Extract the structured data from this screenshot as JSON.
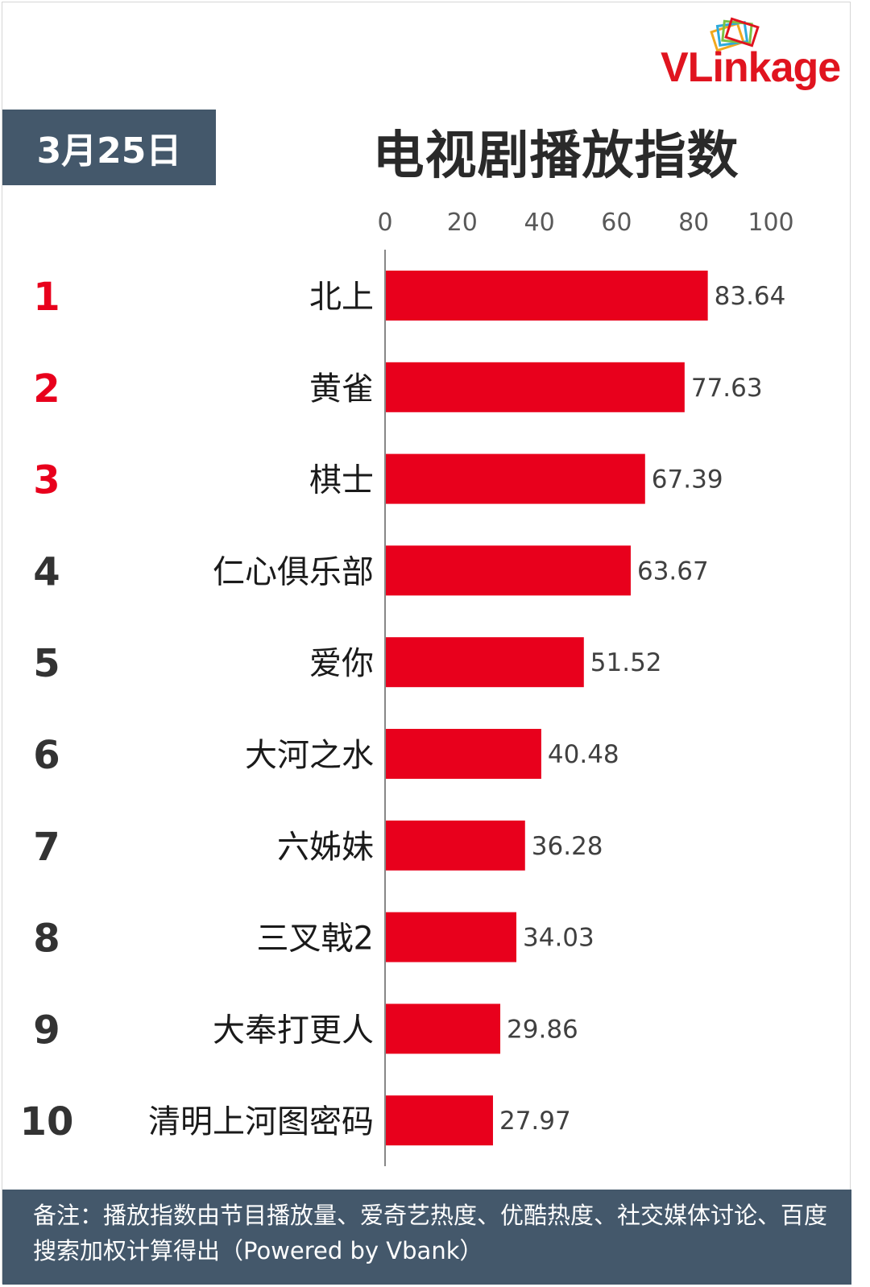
{
  "brand": {
    "name": "VLinkage"
  },
  "header": {
    "date": "3月25日",
    "title": "电视剧播放指数"
  },
  "chart_data": {
    "type": "bar",
    "orientation": "horizontal",
    "title": "电视剧播放指数",
    "xlim": [
      0,
      100
    ],
    "xticks": [
      "0",
      "20",
      "40",
      "60",
      "80",
      "100"
    ],
    "grid": false,
    "ranks": [
      "1",
      "2",
      "3",
      "4",
      "5",
      "6",
      "7",
      "8",
      "9",
      "10"
    ],
    "categories": [
      "北上",
      "黄雀",
      "棋士",
      "仁心俱乐部",
      "爱你",
      "大河之水",
      "六姊妹",
      "三叉戟2",
      "大奉打更人",
      "清明上河图密码"
    ],
    "values": [
      83.64,
      77.63,
      67.39,
      63.67,
      51.52,
      40.48,
      36.28,
      34.03,
      29.86,
      27.97
    ],
    "value_labels": [
      "83.64",
      "77.63",
      "67.39",
      "63.67",
      "51.52",
      "40.48",
      "36.28",
      "34.03",
      "29.86",
      "27.97"
    ],
    "bar_color": "#e8001c",
    "top_rank_color": "#e8001c",
    "rank_color": "#333333"
  },
  "footer": {
    "note": "备注：播放指数由节目播放量、爱奇艺热度、优酷热度、社交媒体讨论、百度搜索加权计算得出（Powered by Vbank）"
  },
  "colors": {
    "badge_bg": "#44586b",
    "brand_red": "#e0141f"
  }
}
